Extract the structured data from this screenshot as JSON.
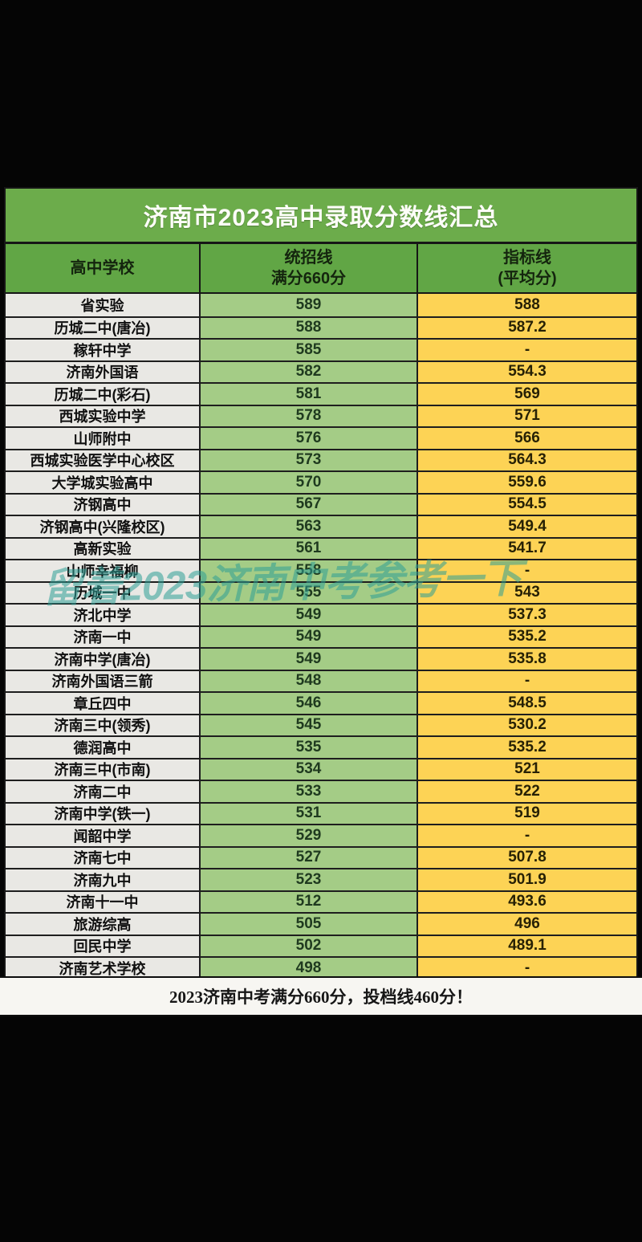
{
  "chart_data": {
    "type": "table",
    "title": "济南市2023高中录取分数线汇总",
    "columns": [
      {
        "line1": "高中学校",
        "line2": ""
      },
      {
        "line1": "统招线",
        "line2": "满分660分"
      },
      {
        "line1": "指标线",
        "line2": "(平均分)"
      }
    ],
    "rows": [
      {
        "school": "省实验",
        "unified": "589",
        "quota": "588"
      },
      {
        "school": "历城二中(唐冶)",
        "unified": "588",
        "quota": "587.2"
      },
      {
        "school": "稼轩中学",
        "unified": "585",
        "quota": "-"
      },
      {
        "school": "济南外国语",
        "unified": "582",
        "quota": "554.3"
      },
      {
        "school": "历城二中(彩石)",
        "unified": "581",
        "quota": "569"
      },
      {
        "school": "西城实验中学",
        "unified": "578",
        "quota": "571"
      },
      {
        "school": "山师附中",
        "unified": "576",
        "quota": "566"
      },
      {
        "school": "西城实验医学中心校区",
        "unified": "573",
        "quota": "564.3"
      },
      {
        "school": "大学城实验高中",
        "unified": "570",
        "quota": "559.6"
      },
      {
        "school": "济钢高中",
        "unified": "567",
        "quota": "554.5"
      },
      {
        "school": "济钢高中(兴隆校区)",
        "unified": "563",
        "quota": "549.4"
      },
      {
        "school": "高新实验",
        "unified": "561",
        "quota": "541.7"
      },
      {
        "school": "山师幸福柳",
        "unified": "558",
        "quota": "-"
      },
      {
        "school": "历城一中",
        "unified": "555",
        "quota": "543"
      },
      {
        "school": "济北中学",
        "unified": "549",
        "quota": "537.3"
      },
      {
        "school": "济南一中",
        "unified": "549",
        "quota": "535.2"
      },
      {
        "school": "济南中学(唐冶)",
        "unified": "549",
        "quota": "535.8"
      },
      {
        "school": "济南外国语三箭",
        "unified": "548",
        "quota": "-"
      },
      {
        "school": "章丘四中",
        "unified": "546",
        "quota": "548.5"
      },
      {
        "school": "济南三中(领秀)",
        "unified": "545",
        "quota": "530.2"
      },
      {
        "school": "德润高中",
        "unified": "535",
        "quota": "535.2"
      },
      {
        "school": "济南三中(市南)",
        "unified": "534",
        "quota": "521"
      },
      {
        "school": "济南二中",
        "unified": "533",
        "quota": "522"
      },
      {
        "school": "济南中学(铁一)",
        "unified": "531",
        "quota": "519"
      },
      {
        "school": "闻韶中学",
        "unified": "529",
        "quota": "-"
      },
      {
        "school": "济南七中",
        "unified": "527",
        "quota": "507.8"
      },
      {
        "school": "济南九中",
        "unified": "523",
        "quota": "501.9"
      },
      {
        "school": "济南十一中",
        "unified": "512",
        "quota": "493.6"
      },
      {
        "school": "旅游综高",
        "unified": "505",
        "quota": "496"
      },
      {
        "school": "回民中学",
        "unified": "502",
        "quota": "489.1"
      },
      {
        "school": "济南艺术学校",
        "unified": "498",
        "quota": "-"
      }
    ],
    "footnote": "2023济南中考满分660分，投档线460分！"
  },
  "watermark": {
    "text": "留着2023济南中考参考一下",
    "color": "#2d9e96"
  },
  "colors": {
    "title_bar_green": "#6cac4b",
    "header_row_green": "#61a645",
    "school_cell_gray": "#e9e8e4",
    "unified_cell_green": "#a4cc86",
    "quota_cell_yellow": "#fdd355"
  }
}
